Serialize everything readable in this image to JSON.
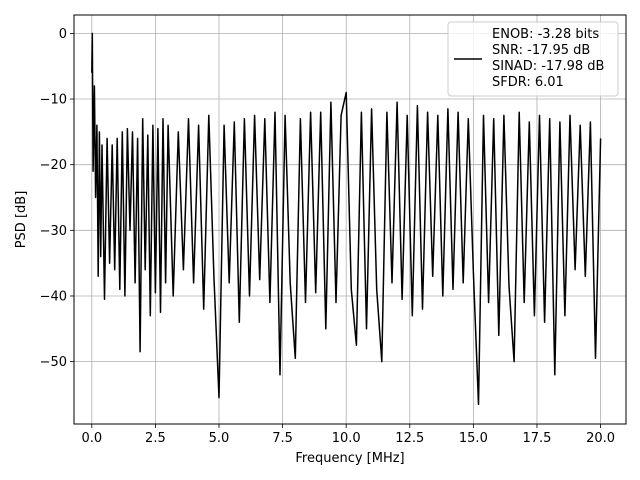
{
  "chart_data": {
    "type": "line",
    "title": "",
    "xlabel": "Frequency [MHz]",
    "ylabel": "PSD [dB]",
    "xlim": [
      -0.7,
      21.0
    ],
    "ylim": [
      -59.5,
      2.8
    ],
    "xticks": [
      0.0,
      2.5,
      5.0,
      7.5,
      10.0,
      12.5,
      15.0,
      17.5,
      20.0
    ],
    "xtick_labels": [
      "0.0",
      "2.5",
      "5.0",
      "7.5",
      "10.0",
      "12.5",
      "15.0",
      "17.5",
      "20.0"
    ],
    "yticks": [
      0,
      -10,
      -20,
      -30,
      -40,
      -50
    ],
    "ytick_labels": [
      "0",
      "−10",
      "−20",
      "−30",
      "−40",
      "−50"
    ],
    "grid": true,
    "legend_position": "top-right",
    "legend_lines": [
      "ENOB: -3.28 bits",
      "SNR: -17.95 dB",
      "SINAD: -17.98 dB",
      "SFDR: 6.01"
    ],
    "line_color": "#000000",
    "grid_color": "#b0b0b0",
    "series": [
      {
        "x": [
          0.0,
          0.02,
          0.05,
          0.1,
          0.15,
          0.2,
          0.25,
          0.3,
          0.35,
          0.4,
          0.5,
          0.6,
          0.7,
          0.8,
          0.9,
          1.0,
          1.1,
          1.2,
          1.3,
          1.4,
          1.5,
          1.6,
          1.7,
          1.8,
          1.9,
          2.0,
          2.1,
          2.2,
          2.3,
          2.4,
          2.5,
          2.6,
          2.7,
          2.8,
          2.9,
          3.0,
          3.2,
          3.4,
          3.6,
          3.8,
          4.0,
          4.2,
          4.4,
          4.6,
          4.8,
          5.0,
          5.2,
          5.4,
          5.6,
          5.8,
          6.0,
          6.2,
          6.4,
          6.6,
          6.8,
          7.0,
          7.2,
          7.4,
          7.6,
          7.8,
          8.0,
          8.2,
          8.4,
          8.6,
          8.8,
          9.0,
          9.2,
          9.4,
          9.6,
          9.8,
          10.0,
          10.2,
          10.4,
          10.6,
          10.8,
          11.0,
          11.2,
          11.4,
          11.6,
          11.8,
          12.0,
          12.2,
          12.4,
          12.6,
          12.8,
          13.0,
          13.2,
          13.4,
          13.6,
          13.8,
          14.0,
          14.2,
          14.4,
          14.6,
          14.8,
          15.0,
          15.2,
          15.4,
          15.6,
          15.8,
          16.0,
          16.2,
          16.4,
          16.6,
          16.8,
          17.0,
          17.2,
          17.4,
          17.6,
          17.8,
          18.0,
          18.2,
          18.4,
          18.6,
          18.8,
          19.0,
          19.2,
          19.4,
          19.6,
          19.8,
          20.0
        ],
        "y": [
          -6.0,
          0.0,
          -21.0,
          -8.0,
          -25.0,
          -14.0,
          -37.0,
          -15.0,
          -34.0,
          -17.0,
          -40.5,
          -16.0,
          -35.0,
          -17.0,
          -36.0,
          -16.0,
          -39.0,
          -15.0,
          -40.0,
          -14.5,
          -30.0,
          -15.0,
          -38.0,
          -16.0,
          -48.5,
          -13.0,
          -36.0,
          -15.5,
          -43.0,
          -14.0,
          -39.5,
          -14.5,
          -42.5,
          -13.0,
          -38.0,
          -14.0,
          -40.0,
          -15.0,
          -36.0,
          -13.0,
          -38.0,
          -14.0,
          -42.0,
          -12.5,
          -37.0,
          -55.5,
          -14.0,
          -38.0,
          -13.5,
          -44.0,
          -13.0,
          -40.0,
          -12.5,
          -37.5,
          -13.0,
          -41.0,
          -12.0,
          -52.0,
          -12.5,
          -38.0,
          -49.5,
          -13.0,
          -41.0,
          -12.0,
          -39.5,
          -12.0,
          -45.0,
          -10.5,
          -41.0,
          -12.5,
          -9.0,
          -39.0,
          -47.5,
          -12.0,
          -45.0,
          -11.5,
          -39.0,
          -50.0,
          -12.0,
          -38.0,
          -10.5,
          -40.5,
          -12.5,
          -43.0,
          -11.0,
          -42.0,
          -12.0,
          -37.0,
          -12.5,
          -40.0,
          -11.5,
          -39.0,
          -12.0,
          -38.0,
          -13.0,
          -36.5,
          -56.5,
          -12.5,
          -41.0,
          -13.0,
          -46.0,
          -12.5,
          -38.5,
          -50.0,
          -12.0,
          -41.0,
          -13.5,
          -43.0,
          -12.5,
          -44.0,
          -13.0,
          -52.0,
          -13.5,
          -43.0,
          -12.5,
          -36.0,
          -14.0,
          -37.0,
          -13.5,
          -49.5,
          -16.0
        ]
      }
    ]
  }
}
